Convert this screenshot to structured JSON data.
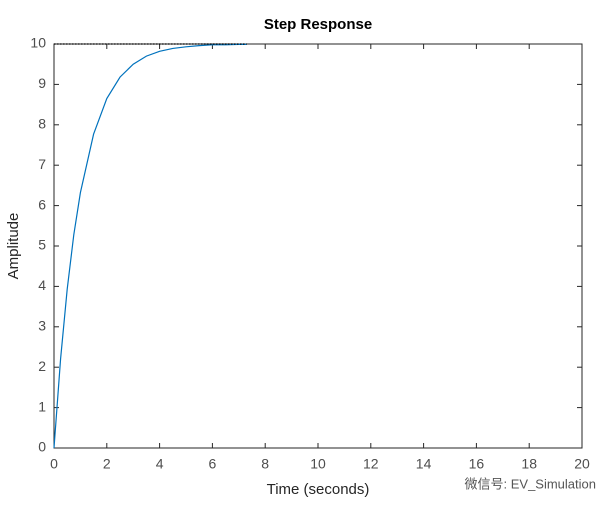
{
  "chart_data": {
    "type": "line",
    "title": "Step Response",
    "xlabel": "Time (seconds)",
    "ylabel": "Amplitude",
    "series": [
      {
        "color": "#0072bd",
        "x": [
          0,
          0.25,
          0.5,
          0.75,
          1,
          1.5,
          2,
          2.5,
          3,
          3.5,
          4,
          4.5,
          5,
          5.5,
          6,
          6.5,
          7,
          7.3
        ],
        "values": [
          0,
          2.21,
          3.93,
          5.28,
          6.32,
          7.77,
          8.65,
          9.18,
          9.5,
          9.7,
          9.82,
          9.89,
          9.93,
          9.96,
          9.98,
          9.98,
          9.99,
          9.99
        ]
      },
      {
        "color": "#000000",
        "dashed": true,
        "x": [
          0,
          7.3
        ],
        "values": [
          10,
          10
        ]
      }
    ],
    "xlim": [
      0,
      20
    ],
    "xticks": [
      0,
      2,
      4,
      6,
      8,
      10,
      12,
      14,
      16,
      18,
      20
    ],
    "ylim": [
      0,
      10
    ],
    "yticks": [
      0,
      1,
      2,
      3,
      4,
      5,
      6,
      7,
      8,
      9,
      10
    ],
    "watermark": "微信号: EV_Simulation"
  }
}
